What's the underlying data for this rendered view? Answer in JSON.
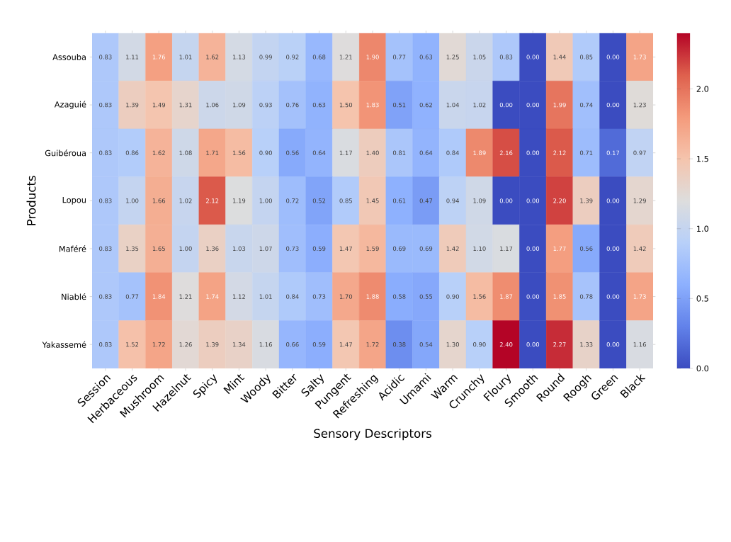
{
  "chart_data": {
    "type": "heatmap",
    "xlabel": "Sensory Descriptors",
    "ylabel": "Products",
    "categories": [
      "Session",
      "Herbaceous",
      "Mushroom",
      "Hazelnut",
      "Spicy",
      "Mint",
      "Woody",
      "Bitter",
      "Salty",
      "Pungent",
      "Refreshing",
      "Acidic",
      "Umami",
      "Warm",
      "Crunchy",
      "Floury",
      "Smooth",
      "Round",
      "Roogh",
      "Green",
      "Black"
    ],
    "y_categories": [
      "Assouba",
      "Azaguié",
      "Guibéroua",
      "Lopou",
      "Maféré",
      "Niablé",
      "Yakassemé"
    ],
    "cells": [
      [
        0.83,
        1.11,
        1.76,
        1.01,
        1.62,
        1.13,
        0.99,
        0.92,
        0.68,
        1.21,
        1.9,
        0.77,
        0.63,
        1.25,
        1.05,
        0.83,
        0.0,
        1.44,
        0.85,
        0.0,
        1.73
      ],
      [
        0.83,
        1.39,
        1.49,
        1.31,
        1.06,
        1.09,
        0.93,
        0.76,
        0.63,
        1.5,
        1.83,
        0.51,
        0.62,
        1.04,
        1.02,
        0.0,
        0.0,
        1.99,
        0.74,
        0.0,
        1.23
      ],
      [
        0.83,
        0.86,
        1.62,
        1.08,
        1.71,
        1.56,
        0.9,
        0.56,
        0.64,
        1.17,
        1.4,
        0.81,
        0.64,
        0.84,
        1.89,
        2.16,
        0.0,
        2.12,
        0.71,
        0.17,
        0.97
      ],
      [
        0.83,
        1.0,
        1.66,
        1.02,
        2.12,
        1.19,
        1.0,
        0.72,
        0.52,
        0.85,
        1.45,
        0.61,
        0.47,
        0.94,
        1.09,
        0.0,
        0.0,
        2.2,
        1.39,
        0.0,
        1.29
      ],
      [
        0.83,
        1.35,
        1.65,
        1.0,
        1.36,
        1.03,
        1.07,
        0.73,
        0.59,
        1.47,
        1.59,
        0.69,
        0.69,
        1.42,
        1.1,
        1.17,
        0.0,
        1.77,
        0.56,
        0.0,
        1.42
      ],
      [
        0.83,
        0.77,
        1.84,
        1.21,
        1.74,
        1.12,
        1.01,
        0.84,
        0.73,
        1.7,
        1.88,
        0.58,
        0.55,
        0.9,
        1.56,
        1.87,
        0.0,
        1.85,
        0.78,
        0.0,
        1.73
      ],
      [
        0.83,
        1.52,
        1.72,
        1.26,
        1.39,
        1.34,
        1.16,
        0.66,
        0.59,
        1.47,
        1.72,
        0.38,
        0.54,
        1.3,
        0.9,
        2.4,
        0.0,
        2.27,
        1.33,
        0.0,
        1.16
      ]
    ],
    "cell_labels": [
      [
        "0.83",
        "1.11",
        "1.76",
        "1.01",
        "1.62",
        "1.13",
        "0.99",
        "0.92",
        "0.68",
        "1.21",
        "1.90",
        "0.77",
        "0.63",
        "1.25",
        "1.05",
        "0.83",
        "0.00",
        "1.44",
        "0.85",
        "0.00",
        "1.73"
      ],
      [
        "0.83",
        "1.39",
        "1.49",
        "1.31",
        "1.06",
        "1.09",
        "0.93",
        "0.76",
        "0.63",
        "1.50",
        "1.83",
        "0.51",
        "0.62",
        "1.04",
        "1.02",
        "0.00",
        "0.00",
        "1.99",
        "0.74",
        "0.00",
        "1.23"
      ],
      [
        "0.83",
        "0.86",
        "1.62",
        "1.08",
        "1.71",
        "1.56",
        "0.90",
        "0.56",
        "0.64",
        "1.17",
        "1.40",
        "0.81",
        "0.64",
        "0.84",
        "1.89",
        "2.16",
        "0.00",
        "2.12",
        "0.71",
        "0.17",
        "0.97"
      ],
      [
        "0.83",
        "1.00",
        "1.66",
        "1.02",
        "2.12",
        "1.19",
        "1.00",
        "0.72",
        "0.52",
        "0.85",
        "1.45",
        "0.61",
        "0.47",
        "0.94",
        "1.09",
        "0.00",
        "0.00",
        "2.20",
        "1.39",
        "0.00",
        "1.29"
      ],
      [
        "0.83",
        "1.35",
        "1.65",
        "1.00",
        "1.36",
        "1.03",
        "1.07",
        "0.73",
        "0.59",
        "1.47",
        "1.59",
        "0.69",
        "0.69",
        "1.42",
        "1.10",
        "1.17",
        "0.00",
        "1.77",
        "0.56",
        "0.00",
        "1.42"
      ],
      [
        "0.83",
        "0.77",
        "1.84",
        "1.21",
        "1.74",
        "1.12",
        "1.01",
        "0.84",
        "0.73",
        "1.70",
        "1.88",
        "0.58",
        "0.55",
        "0.90",
        "1.56",
        "1.87",
        "0.00",
        "1.85",
        "0.78",
        "0.00",
        "1.73"
      ],
      [
        "0.83",
        "1.52",
        "1.72",
        "1.26",
        "1.39",
        "1.34",
        "1.16",
        "0.66",
        "0.59",
        "1.47",
        "1.72",
        "0.38",
        "0.54",
        "1.30",
        "0.90",
        "2.40",
        "0.00",
        "2.27",
        "1.33",
        "0.00",
        "1.16"
      ]
    ],
    "clim": [
      0,
      2.4
    ],
    "cticks": [
      {
        "value": 0,
        "label": "0.0"
      },
      {
        "value": 0.5,
        "label": "0.5"
      },
      {
        "value": 1,
        "label": "1.0"
      },
      {
        "value": 1.5,
        "label": "1.5"
      },
      {
        "value": 2,
        "label": "2.0"
      }
    ]
  }
}
